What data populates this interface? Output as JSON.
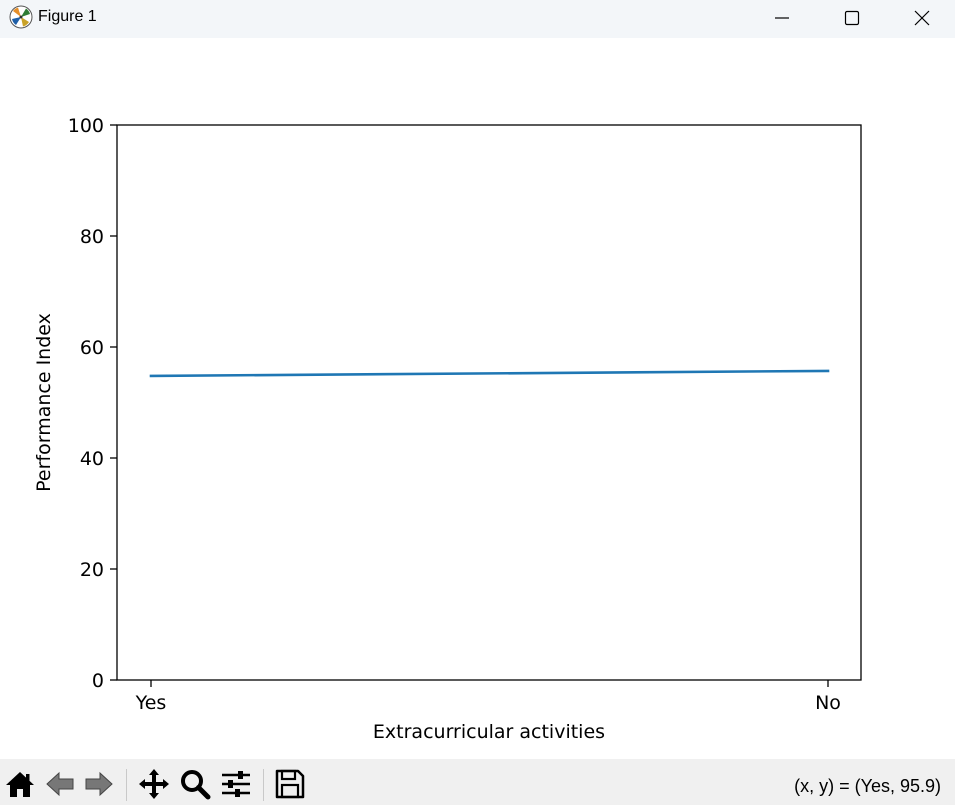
{
  "window": {
    "title": "Figure 1",
    "icons": {
      "app": "matplotlib-logo-icon",
      "minimize": "minimize-icon",
      "maximize": "maximize-icon",
      "close": "close-icon"
    }
  },
  "chart_data": {
    "type": "line",
    "title": "",
    "xlabel": "Extracurricular activities",
    "ylabel": "Performance Index",
    "categories": [
      "Yes",
      "No"
    ],
    "series": [
      {
        "values": [
          54.8,
          55.7
        ],
        "color": "#1f77b4"
      }
    ],
    "ylim": [
      0,
      100
    ],
    "yticks": [
      "0",
      "20",
      "40",
      "60",
      "80",
      "100"
    ],
    "ytick_values": [
      0,
      20,
      40,
      60,
      80,
      100
    ],
    "grid": false,
    "legend": "none"
  },
  "toolbar": {
    "tools": [
      "home-icon",
      "back-icon",
      "forward-icon",
      "pan-icon",
      "zoom-icon",
      "configure-subplots-icon",
      "save-icon"
    ],
    "coordinates": "(x, y) = (Yes, 95.9)"
  }
}
